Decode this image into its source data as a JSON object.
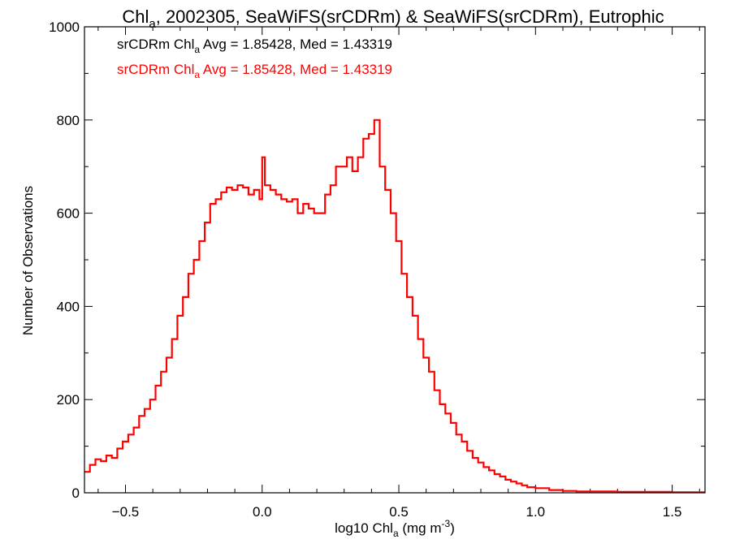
{
  "chart_data": {
    "type": "line",
    "title": {
      "base": "Chl",
      "sub": "a",
      "rest": ", 2002305, SeaWiFS(srCDRm) & SeaWiFS(srCDRm), Eutrophic"
    },
    "xlabel": {
      "base": "log10 Chl",
      "sub": "a",
      "rest": " (mg m",
      "sup": "-3",
      "end": ")"
    },
    "ylabel": "Number of Observations",
    "xlim": [
      -0.65,
      1.62
    ],
    "ylim": [
      0,
      1000
    ],
    "x_ticks": [
      -0.5,
      0.0,
      0.5,
      1.0,
      1.5
    ],
    "x_tick_labels": [
      "−0.5",
      "0.0",
      "0.5",
      "1.0",
      "1.5"
    ],
    "y_ticks": [
      0,
      200,
      400,
      600,
      800,
      1000
    ],
    "y_tick_labels": [
      "0",
      "200",
      "400",
      "600",
      "800",
      "1000"
    ],
    "grid": false,
    "annotations": [
      {
        "base": "srCDRm Chl",
        "sub": "a",
        "rest": " Avg = 1.85428, Med = 1.43319",
        "color": "#000000"
      },
      {
        "base": "srCDRm Chl",
        "sub": "a",
        "rest": " Avg = 1.85428, Med = 1.43319",
        "color": "#ff0000"
      }
    ],
    "series": [
      {
        "color": "#ff0000",
        "step": true,
        "x": [
          -0.65,
          -0.63,
          -0.61,
          -0.59,
          -0.57,
          -0.55,
          -0.53,
          -0.51,
          -0.49,
          -0.47,
          -0.45,
          -0.43,
          -0.41,
          -0.39,
          -0.37,
          -0.35,
          -0.33,
          -0.31,
          -0.29,
          -0.27,
          -0.25,
          -0.23,
          -0.21,
          -0.19,
          -0.17,
          -0.15,
          -0.13,
          -0.11,
          -0.09,
          -0.07,
          -0.05,
          -0.03,
          -0.01,
          0.0,
          0.01,
          0.03,
          0.05,
          0.07,
          0.09,
          0.11,
          0.13,
          0.15,
          0.17,
          0.19,
          0.21,
          0.23,
          0.25,
          0.27,
          0.29,
          0.31,
          0.33,
          0.35,
          0.37,
          0.39,
          0.41,
          0.43,
          0.45,
          0.47,
          0.49,
          0.51,
          0.53,
          0.55,
          0.57,
          0.59,
          0.61,
          0.63,
          0.65,
          0.67,
          0.69,
          0.71,
          0.73,
          0.75,
          0.77,
          0.79,
          0.81,
          0.83,
          0.85,
          0.87,
          0.89,
          0.91,
          0.93,
          0.95,
          0.97,
          1.0,
          1.05,
          1.1,
          1.15,
          1.2,
          1.3,
          1.4,
          1.5,
          1.6
        ],
        "y": [
          45,
          60,
          72,
          68,
          80,
          75,
          95,
          110,
          125,
          140,
          165,
          180,
          200,
          230,
          260,
          290,
          330,
          380,
          420,
          470,
          500,
          540,
          580,
          620,
          630,
          645,
          655,
          650,
          660,
          655,
          640,
          650,
          630,
          720,
          660,
          650,
          640,
          630,
          625,
          630,
          600,
          620,
          610,
          600,
          600,
          640,
          660,
          700,
          700,
          720,
          690,
          720,
          760,
          770,
          800,
          700,
          650,
          600,
          540,
          470,
          420,
          380,
          330,
          290,
          260,
          220,
          190,
          170,
          150,
          125,
          110,
          90,
          75,
          65,
          55,
          48,
          40,
          35,
          28,
          24,
          20,
          16,
          12,
          10,
          6,
          4,
          3,
          3,
          2,
          2,
          1,
          1
        ]
      }
    ]
  }
}
